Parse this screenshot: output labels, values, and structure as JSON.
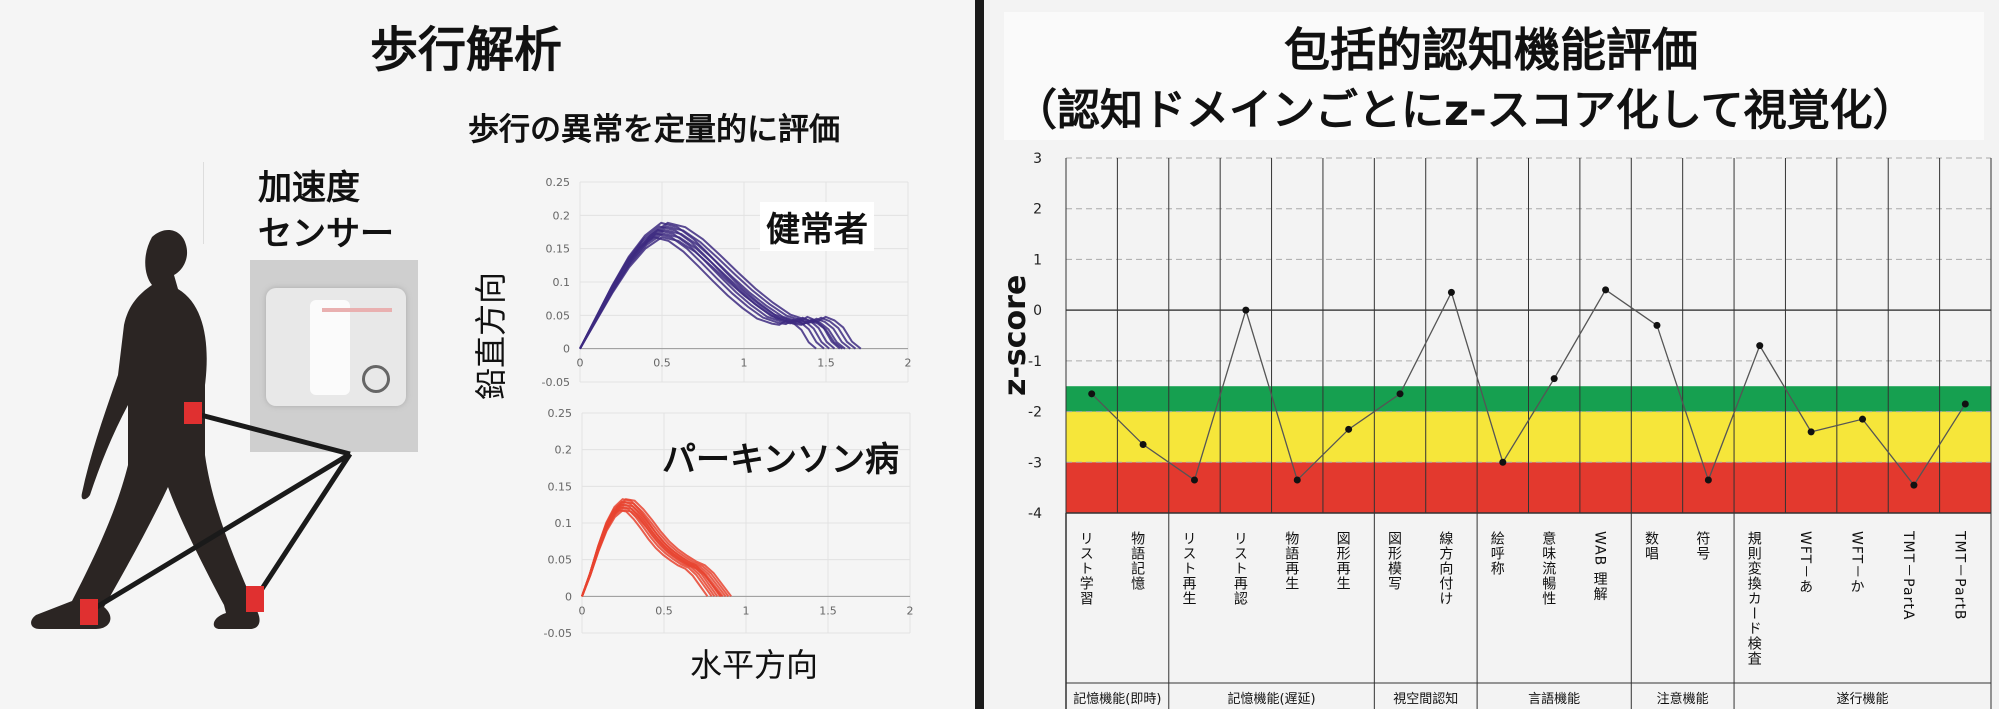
{
  "gait": {
    "title": "歩行解析",
    "subtitle": "歩行の異常を定量的に評価",
    "sensor_label_line1": "加速度",
    "sensor_label_line2": "センサー",
    "ylabel": "鉛直方向",
    "xlabel": "水平方向",
    "healthy_label": "健常者",
    "pd_label": "パーキンソン病",
    "colors": {
      "healthy": "#3d2a80",
      "pd": "#e8432f",
      "marker": "#e03030"
    }
  },
  "cog": {
    "title_line1": "包括的認知機能評価",
    "title_line2": "（認知ドメインごとにz-スコア化して視覚化）",
    "ylabel": "z-score",
    "bands": [
      {
        "from": -1.5,
        "to": -2.0,
        "color": "#16a050"
      },
      {
        "from": -2.0,
        "to": -3.0,
        "color": "#f6e63a"
      },
      {
        "from": -3.0,
        "to": -4.0,
        "color": "#e3392e"
      }
    ]
  },
  "chart_data": [
    {
      "type": "line",
      "panel": "healthy",
      "xlim": [
        0,
        2
      ],
      "ylim": [
        -0.05,
        0.25
      ],
      "xticks": [
        "0",
        "0.5",
        "1",
        "1.5",
        "2"
      ],
      "yticks": [
        "-0.05",
        "0",
        "0.05",
        "0.1",
        "0.15",
        "0.2",
        "0.25"
      ],
      "trajectory": {
        "x": [
          0,
          0.1,
          0.2,
          0.3,
          0.4,
          0.5,
          0.6,
          0.7,
          0.8,
          0.9,
          1.0,
          1.1,
          1.2,
          1.3,
          1.35,
          1.4,
          1.45,
          1.5,
          1.55,
          1.6
        ],
        "y": [
          0,
          0.045,
          0.09,
          0.13,
          0.16,
          0.178,
          0.172,
          0.155,
          0.132,
          0.108,
          0.085,
          0.065,
          0.048,
          0.04,
          0.038,
          0.045,
          0.04,
          0.03,
          0.01,
          0
        ]
      }
    },
    {
      "type": "line",
      "panel": "parkinson",
      "xlim": [
        0,
        2
      ],
      "ylim": [
        -0.05,
        0.25
      ],
      "xticks": [
        "0",
        "0.5",
        "1",
        "1.5",
        "2"
      ],
      "yticks": [
        "-0.05",
        "0",
        "0.05",
        "0.1",
        "0.15",
        "0.2",
        "0.25"
      ],
      "trajectory": {
        "x": [
          0,
          0.05,
          0.1,
          0.15,
          0.2,
          0.25,
          0.3,
          0.35,
          0.4,
          0.45,
          0.5,
          0.55,
          0.6,
          0.65,
          0.7,
          0.75,
          0.8,
          0.85
        ],
        "y": [
          0,
          0.03,
          0.065,
          0.095,
          0.115,
          0.125,
          0.123,
          0.112,
          0.098,
          0.083,
          0.07,
          0.06,
          0.052,
          0.045,
          0.04,
          0.03,
          0.015,
          0
        ]
      }
    },
    {
      "type": "line",
      "title": "包括的認知機能評価",
      "ylabel": "z-score",
      "ylim": [
        -4,
        3
      ],
      "yticks": [
        "3",
        "2",
        "1",
        "0",
        "-1",
        "-2",
        "-3",
        "-4"
      ],
      "categories": [
        "リスト学習",
        "物語記憶",
        "リスト再生",
        "リスト再認",
        "物語再生",
        "図形再生",
        "図形模写",
        "線方向付け",
        "絵呼称",
        "意味流暢性",
        "WAB 理解",
        "数唱",
        "符号",
        "規則変換カード検査",
        "WFT－あ",
        "WFT－か",
        "TMT－PartA",
        "TMT－PartB"
      ],
      "values": [
        -1.65,
        -2.65,
        -3.35,
        0.0,
        -3.35,
        -2.35,
        -1.65,
        0.35,
        -3.0,
        -1.35,
        0.4,
        -0.3,
        -3.35,
        -0.7,
        -2.4,
        -2.15,
        -3.45,
        -1.85
      ],
      "groups": [
        {
          "name": "記憶機能(即時)",
          "count": 2
        },
        {
          "name": "記憶機能(遅延)",
          "count": 4
        },
        {
          "name": "視空間認知",
          "count": 2
        },
        {
          "name": "言語機能",
          "count": 3
        },
        {
          "name": "注意機能",
          "count": 2
        },
        {
          "name": "遂行機能",
          "count": 5
        }
      ]
    }
  ]
}
